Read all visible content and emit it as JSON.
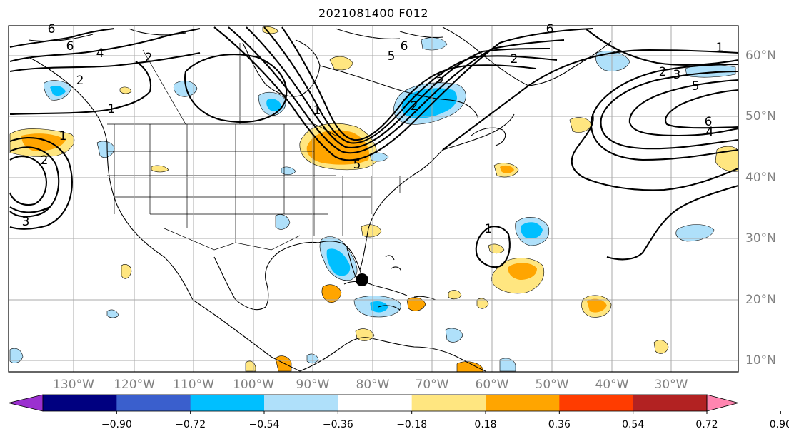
{
  "title": "2021081400 F012",
  "lon_labels": [
    "130°W",
    "120°W",
    "110°W",
    "100°W",
    "90°W",
    "80°W",
    "70°W",
    "60°W",
    "50°W",
    "40°W",
    "30°W"
  ],
  "lat_labels": [
    "60°N",
    "50°N",
    "40°N",
    "30°N",
    "20°N",
    "10°N"
  ],
  "colorbar": {
    "ticks": [
      "−0.90",
      "−0.72",
      "−0.54",
      "−0.36",
      "−0.18",
      "0.18",
      "0.36",
      "0.54",
      "0.72",
      "0.90"
    ],
    "colors": [
      "#9b30d0",
      "#000080",
      "#3a5fcd",
      "#00bfff",
      "#afe0fa",
      "#ffffff",
      "#ffe680",
      "#ffa500",
      "#ff3c00",
      "#b22222",
      "#ff85b0"
    ],
    "extend": "both"
  },
  "contour_labels": [
    "6",
    "6",
    "4",
    "2",
    "2",
    "1",
    "1",
    "2",
    "5",
    "6",
    "6",
    "5",
    "2",
    "1",
    "2",
    "3",
    "5",
    "6",
    "4",
    "2",
    "5",
    "1",
    "3",
    "1"
  ],
  "marker": "storm-center-dot"
}
